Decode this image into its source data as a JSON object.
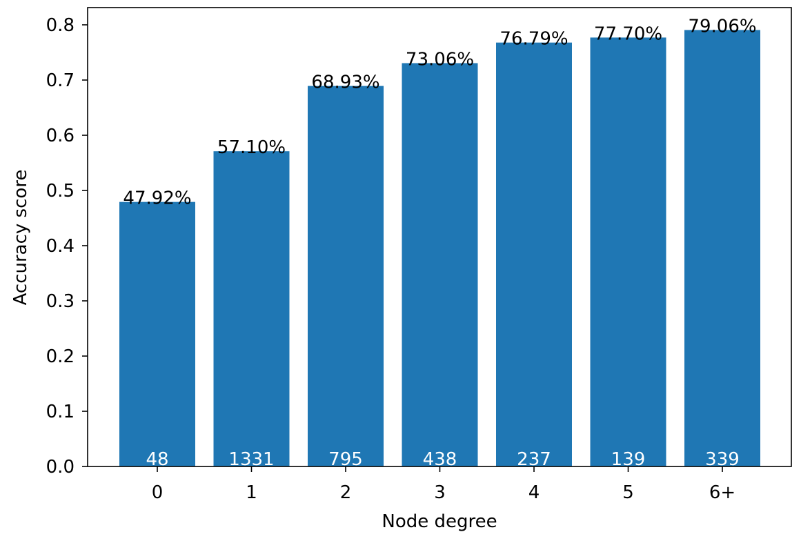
{
  "chart_data": {
    "type": "bar",
    "categories": [
      "0",
      "1",
      "2",
      "3",
      "4",
      "5",
      "6+"
    ],
    "values": [
      0.4792,
      0.571,
      0.6893,
      0.7306,
      0.7679,
      0.777,
      0.7906
    ],
    "value_labels": [
      "47.92%",
      "57.10%",
      "68.93%",
      "73.06%",
      "76.79%",
      "77.70%",
      "79.06%"
    ],
    "counts": [
      "48",
      "1331",
      "795",
      "438",
      "237",
      "139",
      "339"
    ],
    "xlabel": "Node degree",
    "ylabel": "Accuracy score",
    "ylim": [
      0,
      0.83
    ],
    "yticks": [
      "0.0",
      "0.1",
      "0.2",
      "0.3",
      "0.4",
      "0.5",
      "0.6",
      "0.7",
      "0.8"
    ],
    "grid": false,
    "bar_color": "#1f77b4"
  }
}
